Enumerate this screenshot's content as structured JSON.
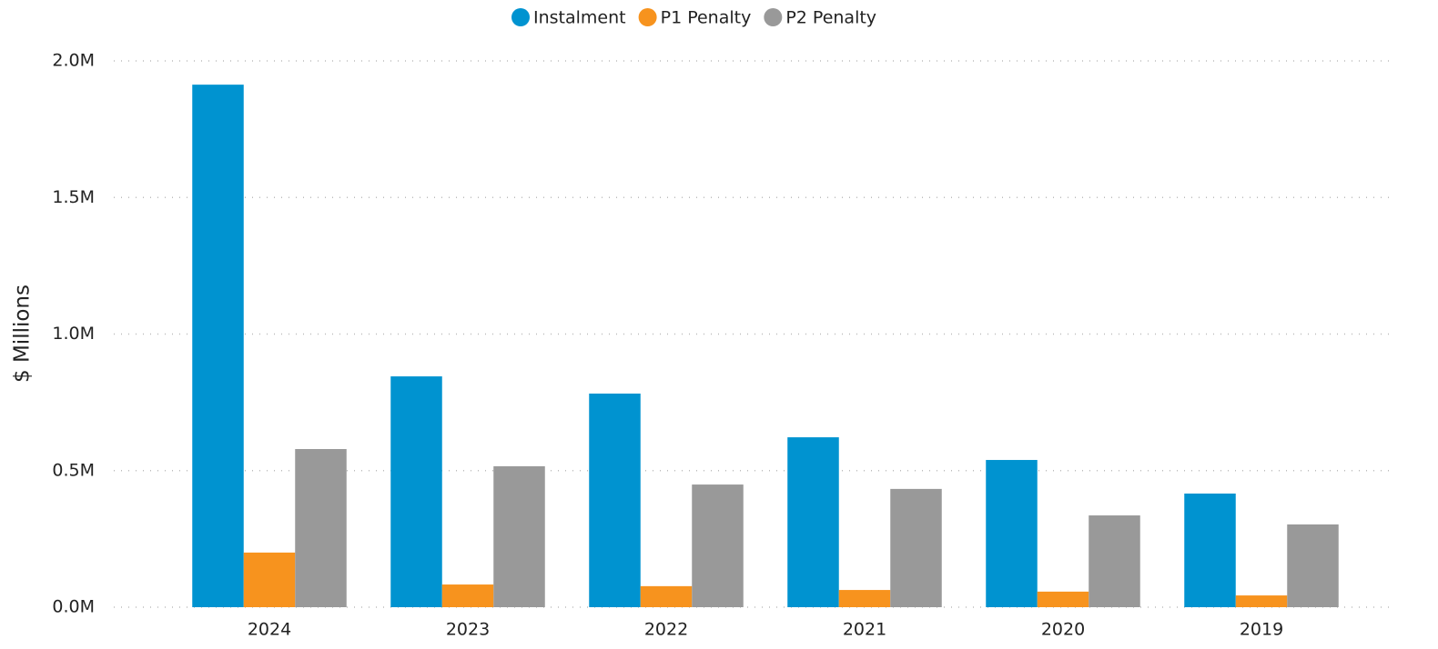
{
  "chart_data": {
    "type": "bar",
    "y_label": "$ Millions",
    "categories": [
      "2024",
      "2023",
      "2022",
      "2021",
      "2020",
      "2019"
    ],
    "series": [
      {
        "name": "Instalment",
        "color": "#0093d0",
        "values": [
          1.913,
          0.845,
          0.782,
          0.622,
          0.539,
          0.416
        ]
      },
      {
        "name": "P1 Penalty",
        "color": "#f7931e",
        "values": [
          0.2,
          0.083,
          0.077,
          0.063,
          0.057,
          0.043
        ]
      },
      {
        "name": "P2 Penalty",
        "color": "#999999",
        "values": [
          0.579,
          0.516,
          0.449,
          0.433,
          0.336,
          0.303
        ]
      }
    ],
    "ylim": [
      0,
      2
    ],
    "yticks": [
      {
        "value": 0,
        "label": "0.0M"
      },
      {
        "value": 0.5,
        "label": "0.5M"
      },
      {
        "value": 1,
        "label": "1.0M"
      },
      {
        "value": 1.5,
        "label": "1.5M"
      },
      {
        "value": 2,
        "label": "2.0M"
      }
    ],
    "grid": true,
    "legend": "top"
  }
}
